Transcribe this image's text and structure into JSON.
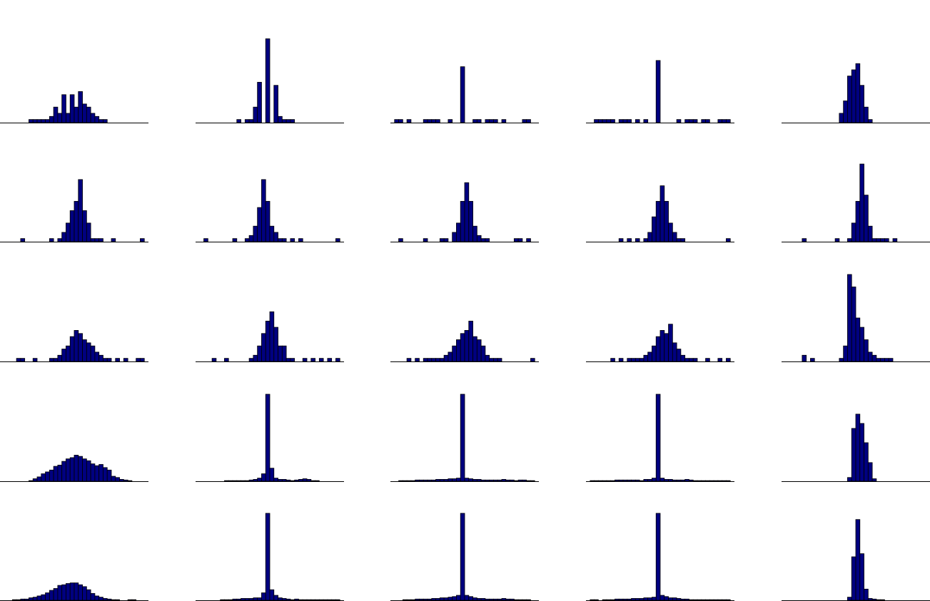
{
  "colors": {
    "bar_fill": "#000080",
    "bar_edge": "#000000",
    "baseline": "#000000",
    "background": "#ffffff"
  },
  "chart_data": [
    {
      "type": "bar",
      "panel": "r1c1",
      "grid": false,
      "axes": false,
      "ylim": [
        0,
        28
      ],
      "values": [
        0,
        0,
        0,
        0,
        0,
        0,
        0,
        1,
        1,
        1,
        1,
        1,
        2,
        5,
        3,
        9,
        3,
        9,
        5,
        10,
        6,
        5,
        3,
        2,
        1,
        1,
        0,
        0,
        0,
        0,
        0,
        0,
        0,
        0,
        0,
        0
      ]
    },
    {
      "type": "bar",
      "panel": "r1c2",
      "grid": false,
      "axes": false,
      "ylim": [
        0,
        28
      ],
      "values": [
        0,
        0,
        0,
        0,
        0,
        0,
        0,
        0,
        0,
        0,
        1,
        0,
        1,
        1,
        5,
        13,
        0,
        27,
        0,
        12,
        2,
        1,
        1,
        1,
        0,
        0,
        0,
        0,
        0,
        0,
        0,
        0,
        0,
        0,
        0,
        0
      ]
    },
    {
      "type": "bar",
      "panel": "r1c3",
      "grid": false,
      "axes": false,
      "ylim": [
        0,
        28
      ],
      "values": [
        0,
        1,
        1,
        0,
        1,
        0,
        0,
        0,
        1,
        1,
        1,
        1,
        0,
        0,
        1,
        0,
        0,
        18,
        0,
        0,
        1,
        1,
        0,
        1,
        1,
        1,
        0,
        1,
        0,
        0,
        0,
        0,
        1,
        1,
        0,
        0
      ]
    },
    {
      "type": "bar",
      "panel": "r1c4",
      "grid": false,
      "axes": false,
      "ylim": [
        0,
        28
      ],
      "values": [
        0,
        0,
        1,
        1,
        1,
        1,
        1,
        0,
        1,
        1,
        1,
        0,
        1,
        0,
        1,
        0,
        0,
        20,
        0,
        0,
        0,
        0,
        1,
        0,
        1,
        1,
        1,
        0,
        1,
        1,
        0,
        0,
        1,
        1,
        1,
        0
      ]
    },
    {
      "type": "bar",
      "panel": "r1c5",
      "grid": false,
      "axes": false,
      "ylim": [
        0,
        28
      ],
      "values": [
        0,
        0,
        0,
        0,
        0,
        0,
        0,
        0,
        0,
        0,
        0,
        0,
        0,
        0,
        3,
        7,
        15,
        17,
        19,
        12,
        5,
        1,
        0,
        0,
        0,
        0,
        0,
        0,
        0,
        0,
        0,
        0,
        0,
        0,
        0,
        0
      ]
    },
    {
      "type": "bar",
      "panel": "r2c1",
      "grid": false,
      "axes": false,
      "ylim": [
        0,
        28
      ],
      "values": [
        0,
        0,
        0,
        0,
        0,
        1,
        0,
        0,
        0,
        0,
        0,
        0,
        1,
        0,
        1,
        3,
        6,
        10,
        13,
        20,
        10,
        6,
        1,
        1,
        1,
        0,
        0,
        1,
        0,
        0,
        0,
        0,
        0,
        0,
        1,
        0
      ]
    },
    {
      "type": "bar",
      "panel": "r2c2",
      "grid": false,
      "axes": false,
      "ylim": [
        0,
        28
      ],
      "values": [
        0,
        0,
        1,
        0,
        0,
        0,
        0,
        0,
        0,
        1,
        0,
        0,
        1,
        2,
        5,
        11,
        20,
        13,
        5,
        3,
        1,
        1,
        0,
        1,
        0,
        1,
        0,
        0,
        0,
        0,
        0,
        0,
        0,
        0,
        1,
        0
      ]
    },
    {
      "type": "bar",
      "panel": "r2c3",
      "grid": false,
      "axes": false,
      "ylim": [
        0,
        28
      ],
      "values": [
        0,
        0,
        1,
        0,
        0,
        0,
        0,
        0,
        1,
        0,
        0,
        0,
        1,
        1,
        0,
        3,
        6,
        13,
        19,
        13,
        5,
        2,
        1,
        1,
        0,
        0,
        0,
        0,
        0,
        0,
        1,
        1,
        0,
        1,
        0,
        0
      ]
    },
    {
      "type": "bar",
      "panel": "r2c4",
      "grid": false,
      "axes": false,
      "ylim": [
        0,
        28
      ],
      "values": [
        0,
        0,
        0,
        0,
        0,
        0,
        0,
        0,
        1,
        0,
        1,
        0,
        1,
        0,
        1,
        3,
        8,
        13,
        18,
        13,
        6,
        3,
        1,
        1,
        0,
        0,
        0,
        0,
        0,
        0,
        0,
        0,
        0,
        0,
        1,
        0
      ]
    },
    {
      "type": "bar",
      "panel": "r2c5",
      "grid": false,
      "axes": false,
      "ylim": [
        0,
        28
      ],
      "values": [
        0,
        0,
        0,
        0,
        0,
        1,
        0,
        0,
        0,
        0,
        0,
        0,
        0,
        1,
        0,
        0,
        1,
        6,
        13,
        25,
        15,
        5,
        1,
        1,
        1,
        1,
        0,
        1,
        0,
        0,
        0,
        0,
        0,
        0,
        0,
        0
      ]
    },
    {
      "type": "bar",
      "panel": "r3c1",
      "grid": false,
      "axes": false,
      "ylim": [
        0,
        28
      ],
      "values": [
        0,
        0,
        0,
        0,
        1,
        1,
        0,
        0,
        1,
        0,
        0,
        0,
        1,
        1,
        2,
        4,
        5,
        8,
        10,
        9,
        7,
        6,
        5,
        3,
        2,
        1,
        1,
        0,
        1,
        0,
        1,
        0,
        0,
        1,
        1,
        0
      ]
    },
    {
      "type": "bar",
      "panel": "r3c2",
      "grid": false,
      "axes": false,
      "ylim": [
        0,
        28
      ],
      "values": [
        0,
        0,
        0,
        0,
        1,
        0,
        0,
        1,
        0,
        0,
        0,
        0,
        0,
        1,
        2,
        5,
        9,
        13,
        16,
        11,
        5,
        5,
        1,
        1,
        0,
        0,
        1,
        0,
        1,
        0,
        1,
        0,
        1,
        0,
        1,
        0
      ]
    },
    {
      "type": "bar",
      "panel": "r3c3",
      "grid": false,
      "axes": false,
      "ylim": [
        0,
        28
      ],
      "values": [
        0,
        0,
        0,
        0,
        1,
        0,
        1,
        0,
        1,
        1,
        1,
        1,
        1,
        2,
        3,
        5,
        7,
        9,
        10,
        13,
        8,
        7,
        5,
        2,
        1,
        1,
        1,
        0,
        0,
        0,
        0,
        0,
        0,
        0,
        1,
        0
      ]
    },
    {
      "type": "bar",
      "panel": "r3c4",
      "grid": false,
      "axes": false,
      "ylim": [
        0,
        28
      ],
      "values": [
        0,
        0,
        0,
        0,
        0,
        0,
        1,
        0,
        1,
        0,
        1,
        1,
        1,
        1,
        2,
        3,
        5,
        8,
        10,
        9,
        12,
        6,
        4,
        2,
        1,
        1,
        1,
        0,
        0,
        1,
        0,
        0,
        1,
        0,
        1,
        0
      ]
    },
    {
      "type": "bar",
      "panel": "r3c5",
      "grid": false,
      "axes": false,
      "ylim": [
        0,
        28
      ],
      "values": [
        0,
        0,
        0,
        0,
        0,
        2,
        0,
        1,
        0,
        0,
        0,
        0,
        0,
        0,
        1,
        5,
        28,
        24,
        14,
        11,
        7,
        3,
        2,
        1,
        1,
        1,
        1,
        0,
        0,
        0,
        0,
        0,
        0,
        0,
        0,
        0
      ]
    },
    {
      "type": "bar",
      "panel": "r4c1",
      "grid": false,
      "axes": false,
      "ylim": [
        0,
        140
      ],
      "values": [
        0,
        0,
        0,
        0,
        0,
        0,
        0,
        1,
        4,
        7,
        12,
        15,
        18,
        24,
        26,
        32,
        36,
        38,
        42,
        40,
        36,
        33,
        28,
        25,
        27,
        22,
        18,
        8,
        6,
        3,
        2,
        1,
        0,
        0,
        0,
        0
      ]
    },
    {
      "type": "bar",
      "panel": "r4c2",
      "grid": false,
      "axes": false,
      "ylim": [
        0,
        140
      ],
      "values": [
        0,
        0,
        0,
        0,
        0,
        0,
        0,
        1,
        1,
        1,
        1,
        1,
        1,
        2,
        3,
        5,
        12,
        145,
        21,
        5,
        3,
        3,
        2,
        1,
        2,
        3,
        4,
        3,
        1,
        1,
        0,
        0,
        0,
        0,
        0,
        0
      ]
    },
    {
      "type": "bar",
      "panel": "r4c3",
      "grid": false,
      "axes": false,
      "ylim": [
        0,
        140
      ],
      "values": [
        0,
        0,
        1,
        1,
        1,
        1,
        2,
        2,
        2,
        2,
        2,
        3,
        3,
        3,
        4,
        4,
        5,
        145,
        5,
        4,
        3,
        3,
        2,
        2,
        2,
        2,
        2,
        3,
        2,
        2,
        1,
        2,
        2,
        1,
        1,
        0
      ]
    },
    {
      "type": "bar",
      "panel": "r4c4",
      "grid": false,
      "axes": false,
      "ylim": [
        0,
        140
      ],
      "values": [
        0,
        1,
        1,
        1,
        1,
        1,
        1,
        2,
        2,
        2,
        2,
        2,
        2,
        1,
        3,
        3,
        5,
        145,
        5,
        3,
        3,
        2,
        2,
        2,
        3,
        2,
        1,
        1,
        1,
        1,
        1,
        1,
        1,
        1,
        1,
        0
      ]
    },
    {
      "type": "bar",
      "panel": "r4c5",
      "grid": false,
      "axes": false,
      "ylim": [
        0,
        140
      ],
      "values": [
        0,
        0,
        0,
        0,
        0,
        0,
        0,
        0,
        0,
        0,
        0,
        0,
        0,
        0,
        0,
        0,
        6,
        85,
        108,
        93,
        62,
        30,
        4,
        0,
        0,
        0,
        0,
        0,
        0,
        0,
        0,
        0,
        0,
        0,
        0,
        0
      ]
    },
    {
      "type": "bar",
      "panel": "r5c1",
      "grid": false,
      "axes": false,
      "ylim": [
        0,
        140
      ],
      "values": [
        0,
        0,
        0,
        1,
        1,
        2,
        2,
        4,
        5,
        7,
        9,
        12,
        16,
        19,
        24,
        25,
        27,
        28,
        28,
        25,
        22,
        17,
        11,
        7,
        5,
        3,
        2,
        1,
        1,
        0,
        0,
        1,
        1,
        0,
        0,
        0
      ]
    },
    {
      "type": "bar",
      "panel": "r5c2",
      "grid": false,
      "axes": false,
      "ylim": [
        0,
        140
      ],
      "values": [
        0,
        0,
        0,
        0,
        0,
        0,
        1,
        1,
        1,
        2,
        2,
        3,
        3,
        3,
        4,
        4,
        12,
        145,
        17,
        8,
        4,
        3,
        2,
        1,
        2,
        1,
        1,
        1,
        1,
        1,
        1,
        1,
        1,
        1,
        1,
        0
      ]
    },
    {
      "type": "bar",
      "panel": "r5c3",
      "grid": false,
      "axes": false,
      "ylim": [
        0,
        140
      ],
      "values": [
        0,
        0,
        0,
        1,
        1,
        1,
        2,
        2,
        2,
        2,
        3,
        3,
        4,
        4,
        5,
        6,
        8,
        145,
        8,
        6,
        4,
        3,
        3,
        2,
        2,
        2,
        2,
        3,
        2,
        2,
        1,
        1,
        1,
        1,
        0,
        0
      ]
    },
    {
      "type": "bar",
      "panel": "r5c4",
      "grid": false,
      "axes": false,
      "ylim": [
        0,
        140
      ],
      "values": [
        0,
        1,
        1,
        0,
        1,
        1,
        1,
        2,
        2,
        2,
        2,
        3,
        3,
        3,
        4,
        4,
        5,
        145,
        8,
        6,
        4,
        4,
        3,
        2,
        2,
        1,
        1,
        1,
        1,
        1,
        1,
        1,
        1,
        1,
        1,
        0
      ]
    },
    {
      "type": "bar",
      "panel": "r5c5",
      "grid": false,
      "axes": false,
      "ylim": [
        0,
        140
      ],
      "values": [
        0,
        0,
        0,
        0,
        0,
        0,
        0,
        0,
        0,
        0,
        0,
        0,
        0,
        0,
        0,
        0,
        5,
        70,
        130,
        75,
        18,
        3,
        2,
        1,
        1,
        0,
        0,
        0,
        0,
        0,
        0,
        0,
        0,
        0,
        0,
        0
      ]
    }
  ]
}
